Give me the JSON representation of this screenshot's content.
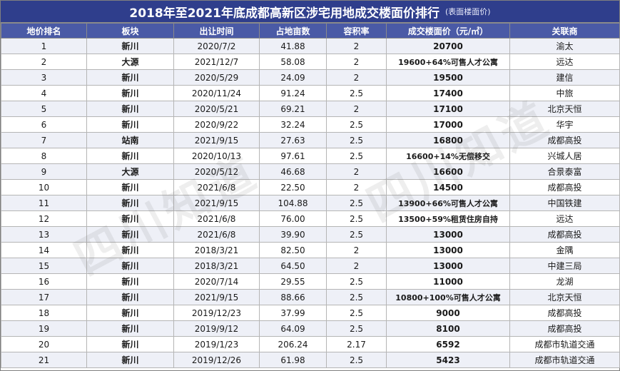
{
  "title": "2018年至2021年底成都高新区涉宅用地成交楼面价排行",
  "title_note": "(表面楼面价)",
  "columns": [
    "地价排名",
    "板块",
    "出让时间",
    "占地亩数",
    "容积率",
    "成交楼面价（元/㎡）",
    "关联商"
  ],
  "rows": [
    {
      "rank": "1",
      "area": "新川",
      "date": "2020/7/2",
      "acres": "41.88",
      "far": "2",
      "price": "20700",
      "party": "渝太"
    },
    {
      "rank": "2",
      "area": "大源",
      "date": "2021/12/7",
      "acres": "58.08",
      "far": "2",
      "price": "19600+64%可售人才公寓",
      "party": "远达"
    },
    {
      "rank": "3",
      "area": "新川",
      "date": "2020/5/29",
      "acres": "24.09",
      "far": "2",
      "price": "19500",
      "party": "建信"
    },
    {
      "rank": "4",
      "area": "新川",
      "date": "2020/11/24",
      "acres": "91.24",
      "far": "2.5",
      "price": "17400",
      "party": "中旅"
    },
    {
      "rank": "5",
      "area": "新川",
      "date": "2020/5/21",
      "acres": "69.21",
      "far": "2",
      "price": "17100",
      "party": "北京天恒"
    },
    {
      "rank": "6",
      "area": "新川",
      "date": "2020/9/22",
      "acres": "32.24",
      "far": "2.5",
      "price": "17000",
      "party": "华宇"
    },
    {
      "rank": "7",
      "area": "站南",
      "date": "2021/9/15",
      "acres": "27.63",
      "far": "2.5",
      "price": "16800",
      "party": "成都高投"
    },
    {
      "rank": "8",
      "area": "新川",
      "date": "2020/10/13",
      "acres": "97.61",
      "far": "2.5",
      "price": "16600+14%无偿移交",
      "party": "兴城人居"
    },
    {
      "rank": "9",
      "area": "大源",
      "date": "2020/5/12",
      "acres": "46.68",
      "far": "2",
      "price": "16600",
      "party": "合景泰富"
    },
    {
      "rank": "10",
      "area": "新川",
      "date": "2021/6/8",
      "acres": "22.50",
      "far": "2",
      "price": "14500",
      "party": "成都高投"
    },
    {
      "rank": "11",
      "area": "新川",
      "date": "2021/9/15",
      "acres": "104.88",
      "far": "2.5",
      "price": "13900+66%可售人才公寓",
      "party": "中国铁建"
    },
    {
      "rank": "12",
      "area": "新川",
      "date": "2021/6/8",
      "acres": "76.00",
      "far": "2.5",
      "price": "13500+59%租赁住房自持",
      "party": "远达"
    },
    {
      "rank": "13",
      "area": "新川",
      "date": "2021/6/8",
      "acres": "39.90",
      "far": "2.5",
      "price": "13000",
      "party": "成都高投"
    },
    {
      "rank": "14",
      "area": "新川",
      "date": "2018/3/21",
      "acres": "82.50",
      "far": "2",
      "price": "13000",
      "party": "金隅"
    },
    {
      "rank": "15",
      "area": "新川",
      "date": "2018/3/21",
      "acres": "64.50",
      "far": "2",
      "price": "13000",
      "party": "中建三局"
    },
    {
      "rank": "16",
      "area": "新川",
      "date": "2020/7/14",
      "acres": "29.55",
      "far": "2.5",
      "price": "11000",
      "party": "龙湖"
    },
    {
      "rank": "17",
      "area": "新川",
      "date": "2021/9/15",
      "acres": "88.66",
      "far": "2.5",
      "price": "10800+100%可售人才公寓",
      "party": "北京天恒"
    },
    {
      "rank": "18",
      "area": "新川",
      "date": "2019/12/23",
      "acres": "37.99",
      "far": "2.5",
      "price": "9000",
      "party": "成都高投"
    },
    {
      "rank": "19",
      "area": "新川",
      "date": "2019/9/12",
      "acres": "64.09",
      "far": "2.5",
      "price": "8100",
      "party": "成都高投"
    },
    {
      "rank": "20",
      "area": "新川",
      "date": "2019/1/23",
      "acres": "206.24",
      "far": "2.17",
      "price": "6592",
      "party": "成都市轨道交通"
    },
    {
      "rank": "21",
      "area": "新川",
      "date": "2019/12/26",
      "acres": "61.98",
      "far": "2.5",
      "price": "5423",
      "party": "成都市轨道交通"
    }
  ],
  "watermark": "四川知道"
}
